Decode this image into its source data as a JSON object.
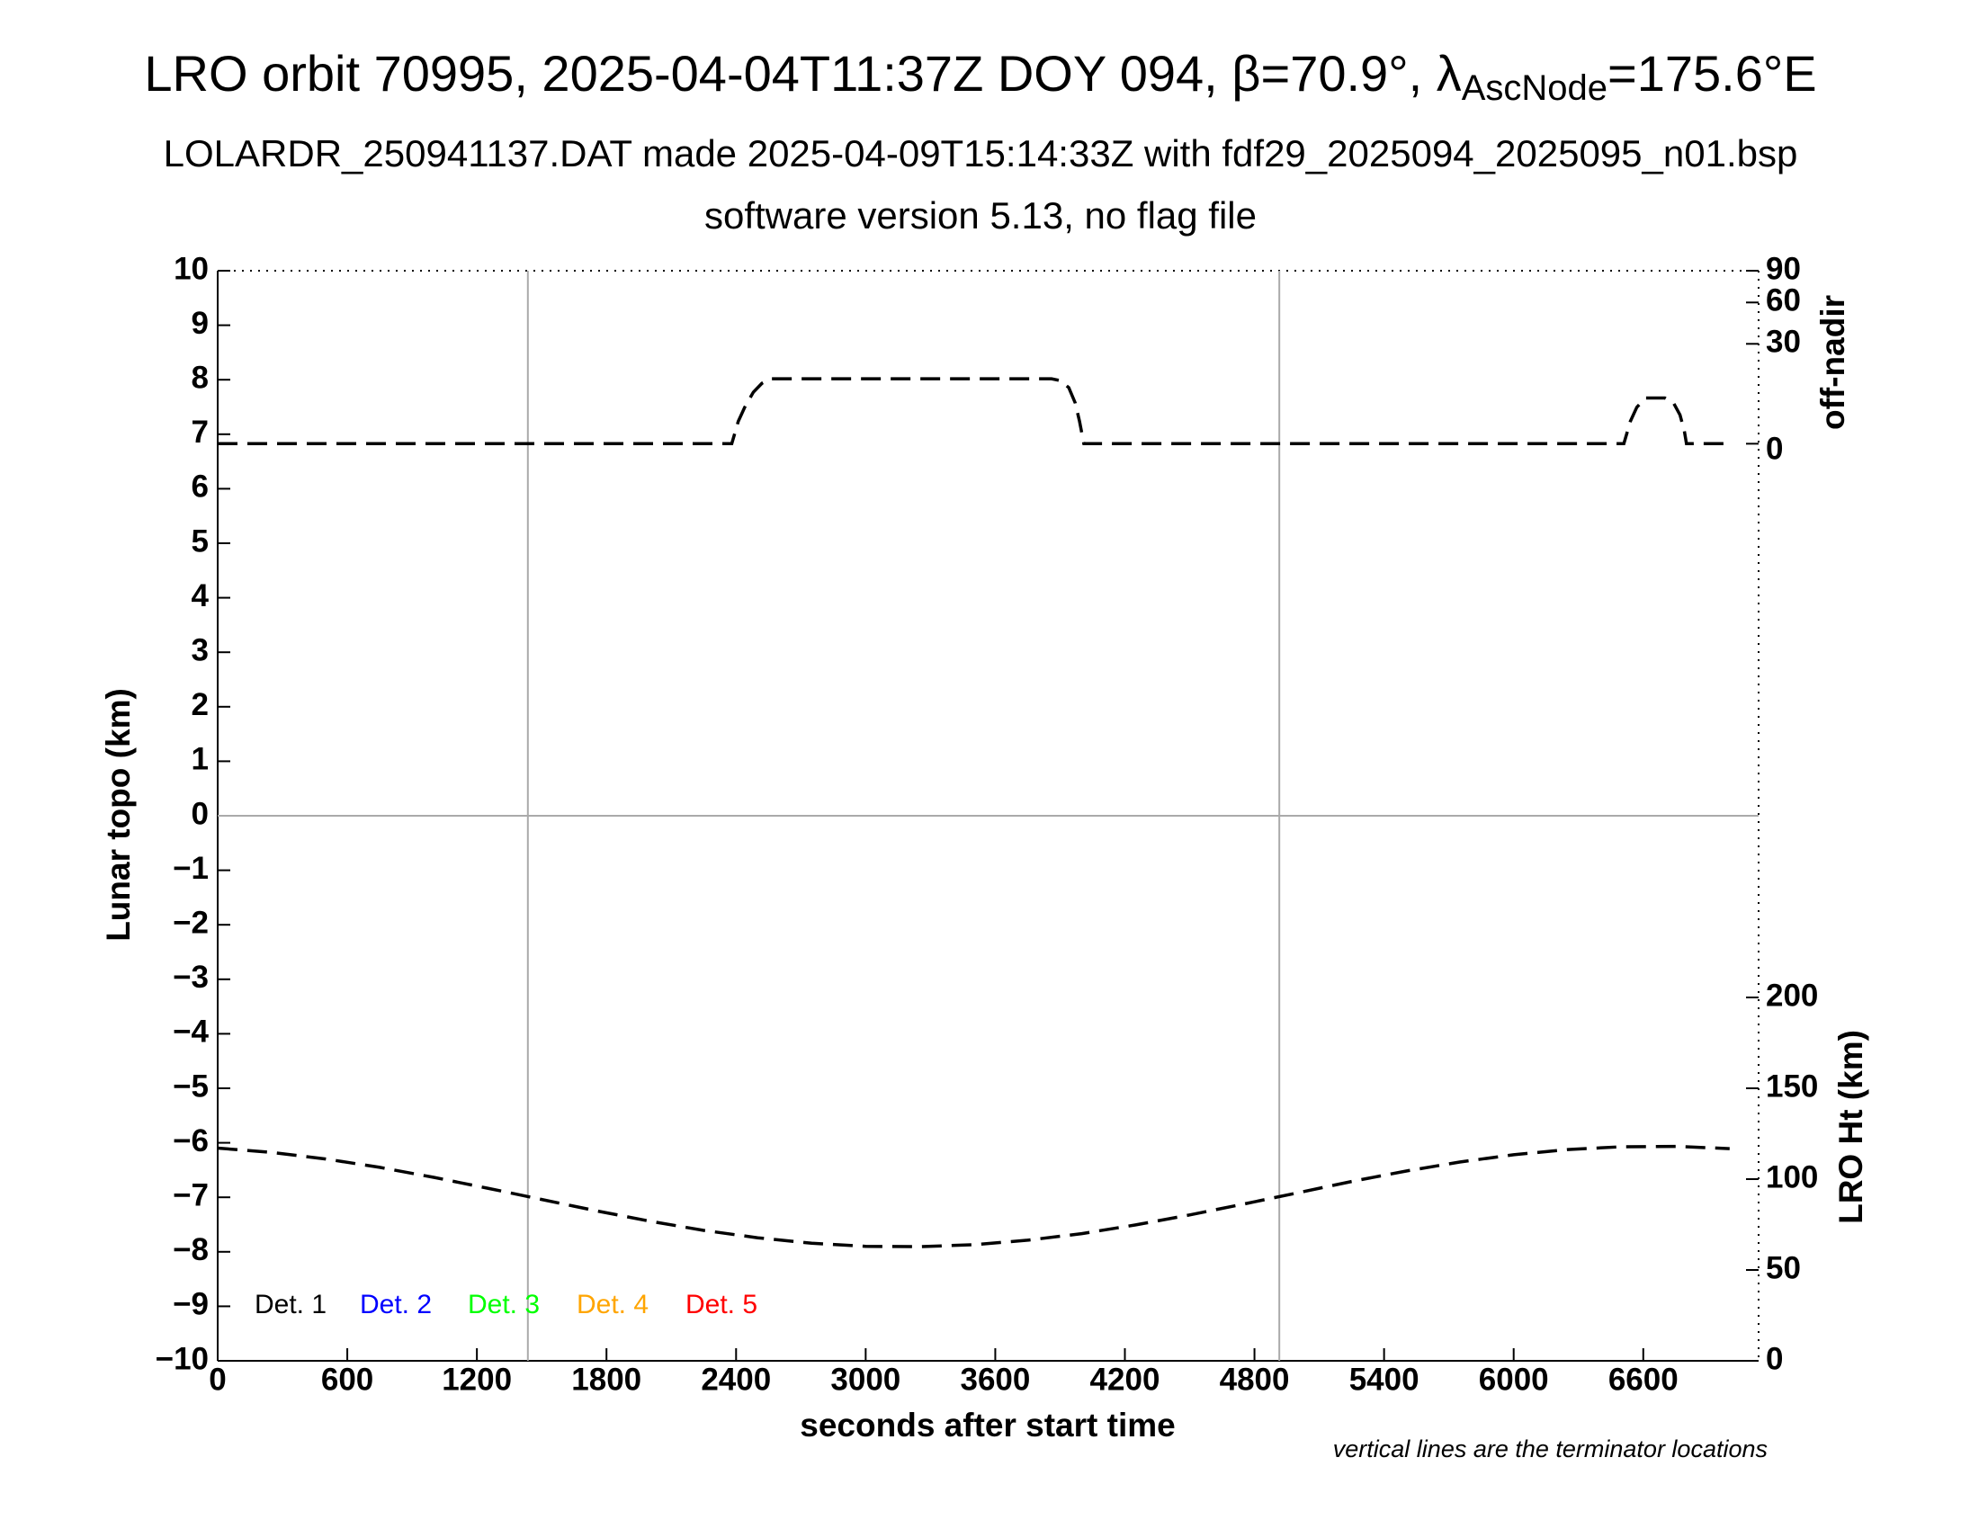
{
  "chart_data": {
    "type": "line",
    "title": {
      "text": "LRO orbit 70995, 2025-04-04T11:37Z DOY 094, β=70.9°, λ",
      "subscript": "AscNode",
      "suffix": "=175.6°E"
    },
    "subtitle": "LOLARDR_250941137.DAT made 2025-04-09T15:14:33Z with fdf29_2025094_2025095_n01.bsp",
    "subtitle2": "software version 5.13, no flag file",
    "xlabel": "seconds after start time",
    "ylabel": "Lunar topo (km)",
    "y2label": "LRO Ht (km)",
    "y3label": "off-nadir",
    "note": "vertical lines are the terminator locations",
    "xlim": [
      0,
      7134
    ],
    "xticks": [
      0,
      600,
      1200,
      1800,
      2400,
      3000,
      3600,
      4200,
      4800,
      5400,
      6000,
      6600
    ],
    "ylim": [
      -10,
      10
    ],
    "yticks": [
      {
        "value": -10,
        "label": "−10"
      },
      {
        "value": -9,
        "label": "−9"
      },
      {
        "value": -8,
        "label": "−8"
      },
      {
        "value": -7,
        "label": "−7"
      },
      {
        "value": -6,
        "label": "−6"
      },
      {
        "value": -5,
        "label": "−5"
      },
      {
        "value": -4,
        "label": "−4"
      },
      {
        "value": -3,
        "label": "−3"
      },
      {
        "value": -2,
        "label": "−2"
      },
      {
        "value": -1,
        "label": "−1"
      },
      0,
      1,
      2,
      3,
      4,
      5,
      6,
      7,
      8,
      9,
      10
    ],
    "y2lim": [
      0,
      600
    ],
    "y2ticks": [
      0,
      50,
      100,
      150,
      200
    ],
    "y3lim": [
      0,
      90
    ],
    "y3scale": "sqrt",
    "y3ticks": [
      0,
      30,
      60,
      90
    ],
    "terminators": [
      1436,
      4915
    ],
    "zero_line": true,
    "legend": [
      {
        "name": "Det. 1",
        "color": "#000000"
      },
      {
        "name": "Det. 2",
        "color": "#0000ff"
      },
      {
        "name": "Det. 3",
        "color": "#00ff00"
      },
      {
        "name": "Det. 4",
        "color": "#ffa500"
      },
      {
        "name": "Det. 5",
        "color": "#ff0000"
      }
    ],
    "series": [
      {
        "axis": "y3",
        "color": "#000000",
        "x": [
          0,
          2380,
          2410,
          2440,
          2480,
          2520,
          2560,
          3860,
          3900,
          3940,
          3970,
          3990,
          4010,
          6510,
          6540,
          6570,
          6610,
          6700,
          6740,
          6770,
          6790,
          6800,
          7000
        ],
        "values": [
          0,
          0,
          1.5,
          4,
          8,
          11,
          12.7,
          12.7,
          12,
          9.5,
          5,
          1.5,
          0,
          0,
          1.5,
          4,
          6.3,
          6.3,
          5,
          2.5,
          0.5,
          0,
          0
        ]
      },
      {
        "axis": "y2",
        "color": "#000000",
        "x": [
          0,
          250,
          500,
          750,
          1000,
          1250,
          1500,
          1750,
          2000,
          2250,
          2500,
          2750,
          3000,
          3250,
          3500,
          3750,
          4000,
          4250,
          4500,
          4750,
          5000,
          5250,
          5500,
          5750,
          6000,
          6250,
          6500,
          6750,
          7000
        ],
        "values": [
          117.1,
          114.7,
          111.1,
          106.5,
          101.0,
          95.0,
          88.8,
          82.6,
          76.9,
          71.8,
          67.7,
          64.7,
          63.0,
          62.8,
          63.9,
          66.4,
          70.0,
          74.8,
          80.3,
          86.3,
          92.5,
          98.7,
          104.4,
          109.4,
          113.4,
          116.3,
          117.8,
          118.0,
          116.8
        ]
      }
    ]
  }
}
